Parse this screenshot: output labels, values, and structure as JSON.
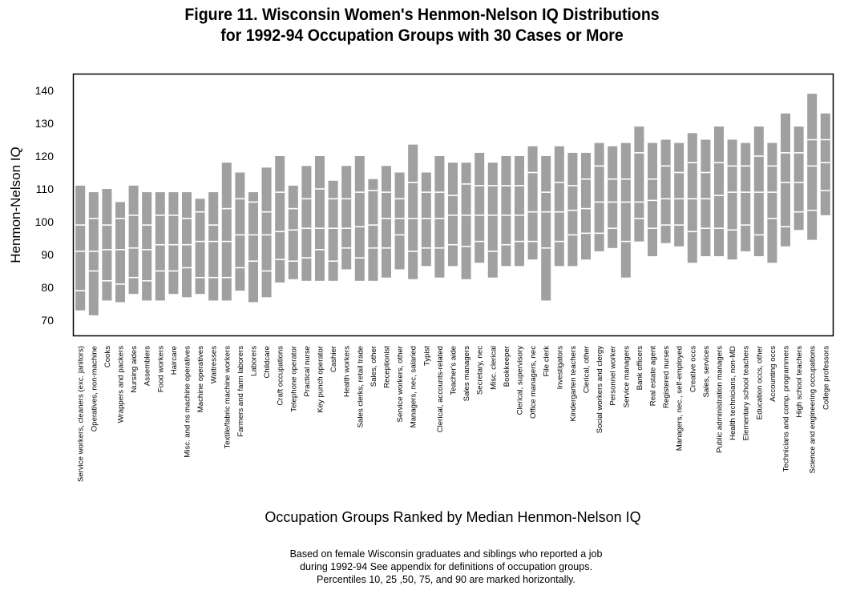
{
  "chart_data": {
    "type": "bar",
    "subtype": "percentile-range-bars",
    "title": [
      "Figure 11. Wisconsin Women's Henmon-Nelson IQ Distributions",
      "for 1992-94 Occupation Groups with 30 Cases or More"
    ],
    "xlabel": "Occupation Groups Ranked by Median Henmon-Nelson IQ",
    "ylabel": "Henmon-Nelson IQ",
    "ylim": [
      65,
      145
    ],
    "yticks": [
      70,
      80,
      90,
      100,
      110,
      120,
      130,
      140
    ],
    "grid": false,
    "legend": null,
    "percentiles": [
      10,
      25,
      50,
      75,
      90
    ],
    "bar_color": "#a0a0a0",
    "notes": [
      "Based on female Wisconsin graduates and siblings who reported a job",
      "during 1992-94  See appendix for definitions of occupation groups.",
      "Percentiles 10, 25 ,50, 75, and 90 are marked horizontally."
    ],
    "categories": [
      "Service workers, cleaners (exc. janitors)",
      "Operatives, non-machine",
      "Cooks",
      "Wrappers and packers",
      "Nursing aides",
      "Assemblers",
      "Food workers",
      "Haircare",
      "Misc. and ns machine operatives",
      "Machine operatives",
      "Waitresses",
      "Textile/fabric machine workers",
      "Farmers and farm laborers",
      "Laborers",
      "Childcare",
      "Craft occupations",
      "Telephone operator",
      "Practical nurse",
      "Key punch operator",
      "Cashier",
      "Health workers",
      "Sales clerks, retail trade",
      "Sales, other",
      "Receptionist",
      "Service workers, other",
      "Managers, nec, salaried",
      "Typist",
      "Clerical, accounts-related",
      "Teacher's aide",
      "Sales managers",
      "Secretary, nec",
      "Misc. clerical",
      "Bookkeeper",
      "Clerical, supervisory",
      "Office managers, nec",
      "File clerk",
      "Investigators",
      "Kindergarten teachers",
      "Clerical, other",
      "Social workers and clergy",
      "Personnel worker",
      "Service managers",
      "Bank officers",
      "Real estate agent",
      "Registered nurses",
      "Managers, nec., self-employed",
      "Creative occs",
      "Sales, services",
      "Public administration managers",
      "Health technicians, non-MD",
      "Elementary school teachers",
      "Education occs, other",
      "Accounting occs",
      "Technicians and comp. programmers",
      "High school teachers",
      "Science and engineering occupations",
      "College professors"
    ],
    "series": [
      {
        "name": "p10",
        "values": [
          73,
          71.5,
          76,
          75.5,
          78,
          76,
          76,
          78,
          77,
          78,
          76,
          76,
          79,
          75.5,
          77,
          81.5,
          82.5,
          82,
          82,
          82,
          85.5,
          82,
          82,
          83,
          85.5,
          82.5,
          86.5,
          83,
          86.5,
          82.5,
          87.5,
          83,
          86.5,
          86.5,
          88.5,
          76,
          86.5,
          86.5,
          88.5,
          91,
          92,
          83,
          94,
          89.5,
          93.5,
          92.5,
          87.5,
          89.5,
          89.5,
          88.5,
          91,
          89.5,
          87.5,
          92.5,
          97.5,
          94.5,
          102
        ]
      },
      {
        "name": "p25",
        "values": [
          79,
          85,
          82,
          81,
          83,
          82,
          85,
          85,
          86,
          83,
          83,
          83,
          86,
          88,
          85,
          88.5,
          88,
          89,
          91.5,
          88,
          92,
          89,
          92,
          92,
          96,
          91,
          92,
          92,
          93,
          92.5,
          94,
          91,
          93,
          94,
          94,
          92,
          94,
          96,
          96.5,
          96.5,
          98,
          94,
          101,
          98,
          99,
          99,
          97,
          98,
          98,
          97.5,
          99,
          96,
          101,
          98.5,
          103,
          103.5,
          109.5
        ]
      },
      {
        "name": "p50",
        "values": [
          91,
          91,
          91.5,
          91.5,
          92,
          91.5,
          93,
          93,
          93,
          94,
          94,
          94,
          96,
          96,
          96,
          97,
          97.5,
          98,
          98,
          98,
          98,
          98.5,
          99,
          101,
          101,
          101,
          101,
          101,
          102,
          102,
          102,
          102,
          102,
          102,
          103,
          103,
          103,
          103.5,
          104,
          106,
          106,
          106,
          106,
          106.5,
          107,
          107,
          107,
          107,
          108,
          109,
          109,
          109,
          109,
          112,
          112,
          117,
          118
        ]
      },
      {
        "name": "p75",
        "values": [
          99,
          101,
          99,
          101,
          102,
          99,
          102,
          102,
          101,
          103,
          99,
          104,
          107,
          106,
          103,
          109,
          104,
          107,
          110,
          107,
          107,
          109,
          109.5,
          109,
          107,
          112,
          109,
          109,
          108,
          111.5,
          111,
          111,
          111,
          111,
          115,
          109,
          112,
          111,
          113,
          117,
          113,
          113,
          121,
          113,
          117,
          115,
          118,
          115,
          118,
          117,
          117,
          120,
          117,
          121,
          121,
          125,
          125
        ]
      },
      {
        "name": "p90",
        "values": [
          111,
          109,
          110,
          106,
          111,
          109,
          109,
          109,
          109,
          107,
          109,
          118,
          115,
          109,
          116.5,
          120,
          111,
          117,
          120,
          112.5,
          117,
          120,
          113,
          117,
          115,
          123.5,
          115,
          120,
          118,
          118,
          121,
          118,
          120,
          120,
          123,
          120,
          123,
          121,
          121,
          124,
          123,
          124,
          129,
          124,
          125,
          124,
          127,
          125,
          129,
          125,
          124,
          129,
          124,
          133,
          129,
          139,
          133
        ]
      }
    ]
  }
}
